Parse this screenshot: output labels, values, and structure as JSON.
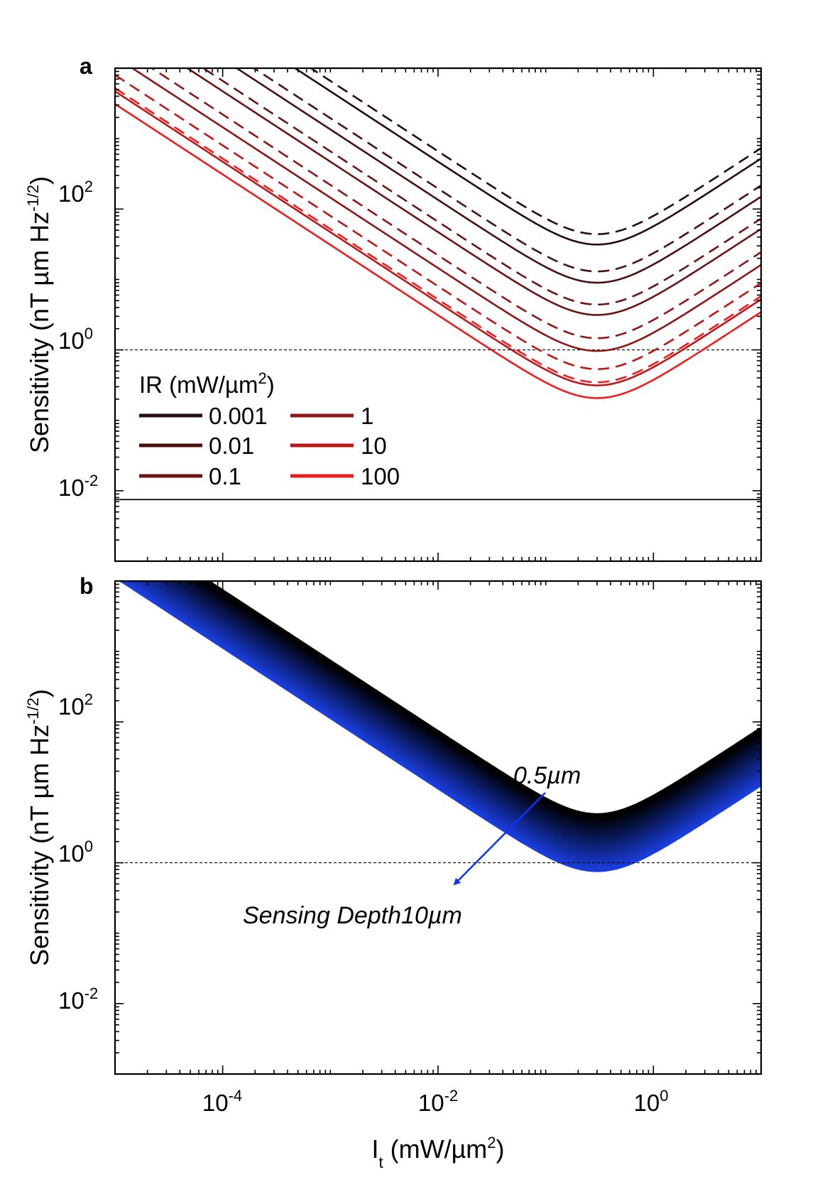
{
  "chart_data": [
    {
      "panel": "a",
      "type": "line",
      "xscale": "log",
      "yscale": "log",
      "xlim": [
        1e-05,
        10
      ],
      "ylim": [
        0.001,
        10000
      ],
      "xlabel": "I",
      "xlabel_sub": "t",
      "xlabel_unit": "(mW/µm",
      "xlabel_unit_sup": "2",
      "xlabel_unit_end": ")",
      "ylabel": "Sensitivity (nT µm Hz",
      "ylabel_sup": "-1/2",
      "ylabel_end": ")",
      "yticks": [
        {
          "base": "10",
          "exp": "2",
          "value": 100
        },
        {
          "base": "10",
          "exp": "0",
          "value": 1
        },
        {
          "base": "10",
          "exp": "-2",
          "value": 0.01
        }
      ],
      "legend_title": "IR (mW/µm",
      "legend_title_sup": "2",
      "legend_title_end": ")",
      "legend_position": "center-left",
      "reference_lines": [
        {
          "y": 1,
          "style": "dotted"
        },
        {
          "y": 0.0075,
          "style": "solid"
        }
      ],
      "curve_model": "y = K * (x^-1 + x0^-2 * x)",
      "curve_x0": 0.3,
      "series": [
        {
          "name": "0.001",
          "color": "#2a0b0b",
          "solid_K": 4.7,
          "dashed_K": 6.6
        },
        {
          "name": "0.01",
          "color": "#4a1111",
          "solid_K": 1.35,
          "dashed_K": 1.95
        },
        {
          "name": "0.1",
          "color": "#6b1414",
          "solid_K": 0.47,
          "dashed_K": 0.66
        },
        {
          "name": "1",
          "color": "#8e1616",
          "solid_K": 0.145,
          "dashed_K": 0.22
        },
        {
          "name": "10",
          "color": "#bf1616",
          "solid_K": 0.047,
          "dashed_K": 0.08
        },
        {
          "name": "100",
          "color": "#ee1c1c",
          "solid_K": 0.031,
          "dashed_K": 0.052
        }
      ]
    },
    {
      "panel": "b",
      "type": "area",
      "xscale": "log",
      "yscale": "log",
      "xlim": [
        1e-05,
        10
      ],
      "ylim": [
        0.001,
        10000
      ],
      "xlabel": "I",
      "xlabel_sub": "t",
      "xlabel_unit": "(mW/µm",
      "xlabel_unit_sup": "2",
      "xlabel_unit_end": ")",
      "ylabel": "Sensitivity (nT µm Hz",
      "ylabel_sup": "-1/2",
      "ylabel_end": ")",
      "xticks": [
        {
          "base": "10",
          "exp": "-4",
          "value": 0.0001
        },
        {
          "base": "10",
          "exp": "-2",
          "value": 0.01
        },
        {
          "base": "10",
          "exp": "0",
          "value": 1
        }
      ],
      "yticks": [
        {
          "base": "10",
          "exp": "2",
          "value": 100
        },
        {
          "base": "10",
          "exp": "0",
          "value": 1
        },
        {
          "base": "10",
          "exp": "-2",
          "value": 0.01
        }
      ],
      "reference_lines": [
        {
          "y": 1,
          "style": "dotted"
        }
      ],
      "curve_model": "y = K * (x^-1 + x0^-2 * x)",
      "curve_x0": 0.3,
      "band": {
        "K_top": 0.7,
        "K_bottom": 0.12,
        "n_curves": 40,
        "color_top": "#000000",
        "color_bottom": "#1a3fe0"
      },
      "annotations": {
        "top": "0.5µm",
        "bottom": "Sensing Depth10µm"
      },
      "arrow_color": "#1030ff"
    }
  ]
}
